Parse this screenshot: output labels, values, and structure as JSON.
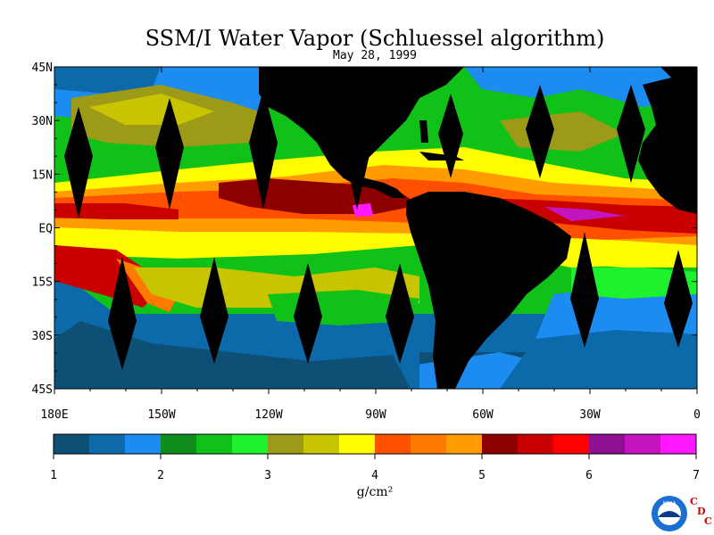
{
  "chart_data": {
    "type": "heatmap",
    "title": "SSM/I Water Vapor (Schluessel algorithm)",
    "subtitle": "May 28, 1999",
    "x_ticks": [
      "180E",
      "150W",
      "120W",
      "90W",
      "60W",
      "30W",
      "0"
    ],
    "y_ticks": [
      "45N",
      "30N",
      "15N",
      "EQ",
      "15S",
      "30S",
      "45S"
    ],
    "x_range": [
      -180,
      0
    ],
    "y_range": [
      -45,
      45
    ],
    "colorbar": {
      "label": "g/cm²",
      "ticks": [
        "1",
        "2",
        "3",
        "4",
        "5",
        "6",
        "7"
      ],
      "range": [
        1,
        7
      ],
      "colors": [
        "#0d4f75",
        "#0c6aab",
        "#1c8cf0",
        "#0f8c1a",
        "#10c218",
        "#1ef22c",
        "#9c9a16",
        "#c8c400",
        "#fffd00",
        "#ff5000",
        "#ff7a00",
        "#ff9c00",
        "#8c0000",
        "#c80000",
        "#ff0000",
        "#8c1090",
        "#c414c0",
        "#ff18ff"
      ]
    },
    "grid": false,
    "legend": "colorbar-bottom"
  },
  "logo": {
    "noaa_text": "NOAA",
    "cdc_letters": [
      "C",
      "D",
      "C"
    ]
  }
}
